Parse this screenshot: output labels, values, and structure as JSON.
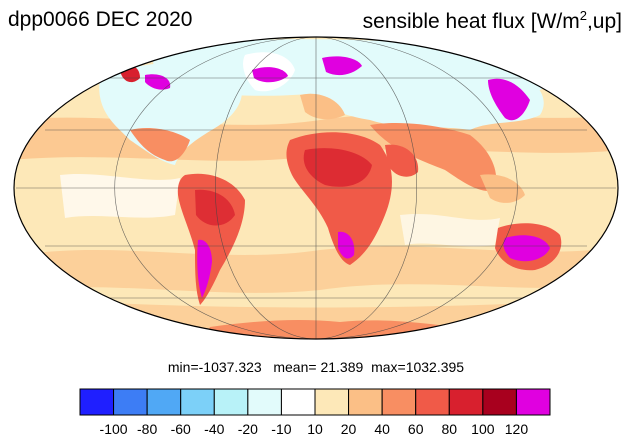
{
  "header": {
    "title_left": "dpp0066 DEC 2020",
    "title_right_prefix": "sensible heat flux [W/m",
    "title_right_sup": "2",
    "title_right_suffix": ",up]"
  },
  "stats": {
    "min_label": "min=",
    "min": "-1037.323",
    "mean_label": "mean=",
    "mean": "21.389",
    "max_label": "max=",
    "max": "1032.395"
  },
  "colorbar": {
    "colors": [
      "#1f1fff",
      "#3d7df5",
      "#50a8f5",
      "#7cd0f8",
      "#b8f2f8",
      "#e2fbfb",
      "#ffffff",
      "#fde8b8",
      "#fbbf86",
      "#f88e62",
      "#f05a48",
      "#d8202e",
      "#a8001e",
      "#e000e0"
    ],
    "labels": [
      "-100",
      "-80",
      "-60",
      "-40",
      "-20",
      "-10",
      "10",
      "20",
      "40",
      "60",
      "80",
      "100",
      "120"
    ]
  },
  "map": {
    "projection": "mollweide",
    "ocean_color": "#fde8b8",
    "land_color": "#f47c55",
    "hot_land_color": "#d8202e",
    "extreme_color": "#e000e0",
    "cold_color": "#e2fbfb"
  }
}
